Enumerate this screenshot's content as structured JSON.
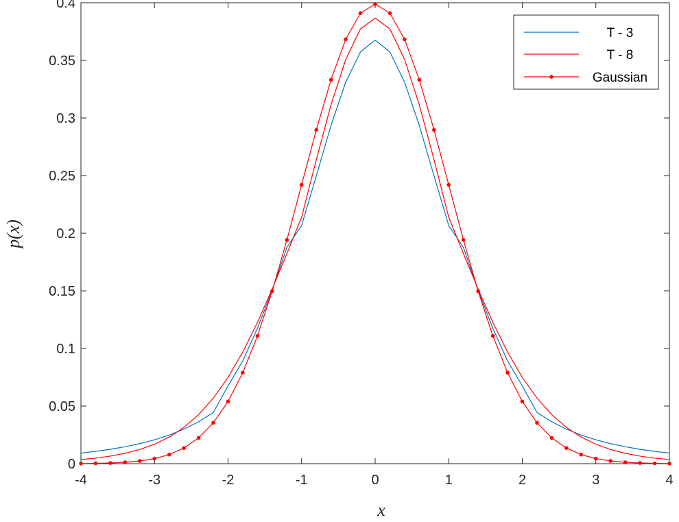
{
  "chart_data": {
    "type": "line",
    "xlabel": "x",
    "ylabel": "p(x)",
    "xlim": [
      -4,
      4
    ],
    "ylim": [
      0,
      0.4
    ],
    "xticks": [
      -4,
      -3,
      -2,
      -1,
      0,
      1,
      2,
      3,
      4
    ],
    "xtick_labels": [
      "-4",
      "-3",
      "-2",
      "-1",
      "0",
      "1",
      "2",
      "3",
      "4"
    ],
    "yticks": [
      0,
      0.05,
      0.1,
      0.15,
      0.2,
      0.25,
      0.3,
      0.35,
      0.4
    ],
    "ytick_labels": [
      "0",
      "0.05",
      "0.1",
      "0.15",
      "0.2",
      "0.25",
      "0.3",
      "0.35",
      "0.4"
    ],
    "grid": false,
    "legend_position": "top-right",
    "x": [
      -4.0,
      -3.8,
      -3.6,
      -3.4,
      -3.2,
      -3.0,
      -2.8,
      -2.6,
      -2.4,
      -2.2,
      -2.0,
      -1.8,
      -1.6,
      -1.4,
      -1.2,
      -1.0,
      -0.8,
      -0.6,
      -0.4,
      -0.2,
      0.0,
      0.2,
      0.4,
      0.6,
      0.8,
      1.0,
      1.2,
      1.4,
      1.6,
      1.8,
      2.0,
      2.2,
      2.4,
      2.6,
      2.8,
      3.0,
      3.2,
      3.4,
      3.6,
      3.8,
      4.0
    ],
    "series": [
      {
        "name": "T - 3",
        "color": "#0072bd",
        "marker": "none",
        "values": [
          0.0092,
          0.0107,
          0.0125,
          0.0147,
          0.0174,
          0.0207,
          0.0248,
          0.03,
          0.0364,
          0.0445,
          0.0675,
          0.0892,
          0.1175,
          0.1504,
          0.1877,
          0.2067,
          0.2498,
          0.2936,
          0.3311,
          0.3573,
          0.3676,
          0.3573,
          0.3311,
          0.2936,
          0.2498,
          0.2067,
          0.1877,
          0.1504,
          0.1175,
          0.0892,
          0.0675,
          0.0445,
          0.0364,
          0.03,
          0.0248,
          0.0207,
          0.0174,
          0.0147,
          0.0125,
          0.0107,
          0.0092
        ]
      },
      {
        "name": "T - 8",
        "color": "#ff0000",
        "marker": "none",
        "values": [
          0.0036,
          0.0048,
          0.0066,
          0.009,
          0.0123,
          0.0169,
          0.0231,
          0.0315,
          0.0426,
          0.0569,
          0.0749,
          0.0969,
          0.1226,
          0.1515,
          0.1823,
          0.2139,
          0.2638,
          0.3115,
          0.3508,
          0.3773,
          0.3867,
          0.3773,
          0.3508,
          0.3115,
          0.2638,
          0.2139,
          0.1823,
          0.1515,
          0.1226,
          0.0969,
          0.0749,
          0.0569,
          0.0426,
          0.0315,
          0.0231,
          0.0169,
          0.0123,
          0.009,
          0.0066,
          0.0048,
          0.0036
        ]
      },
      {
        "name": "Gaussian",
        "color": "#ff0000",
        "marker": "dot",
        "values": [
          0.0001,
          0.0003,
          0.0006,
          0.0012,
          0.0024,
          0.0044,
          0.0079,
          0.0136,
          0.0224,
          0.0355,
          0.054,
          0.079,
          0.1109,
          0.1497,
          0.1942,
          0.242,
          0.2897,
          0.3332,
          0.3683,
          0.391,
          0.3989,
          0.391,
          0.3683,
          0.3332,
          0.2897,
          0.242,
          0.1942,
          0.1497,
          0.1109,
          0.079,
          0.054,
          0.0355,
          0.0224,
          0.0136,
          0.0079,
          0.0044,
          0.0024,
          0.0012,
          0.0006,
          0.0003,
          0.0001
        ]
      }
    ]
  }
}
